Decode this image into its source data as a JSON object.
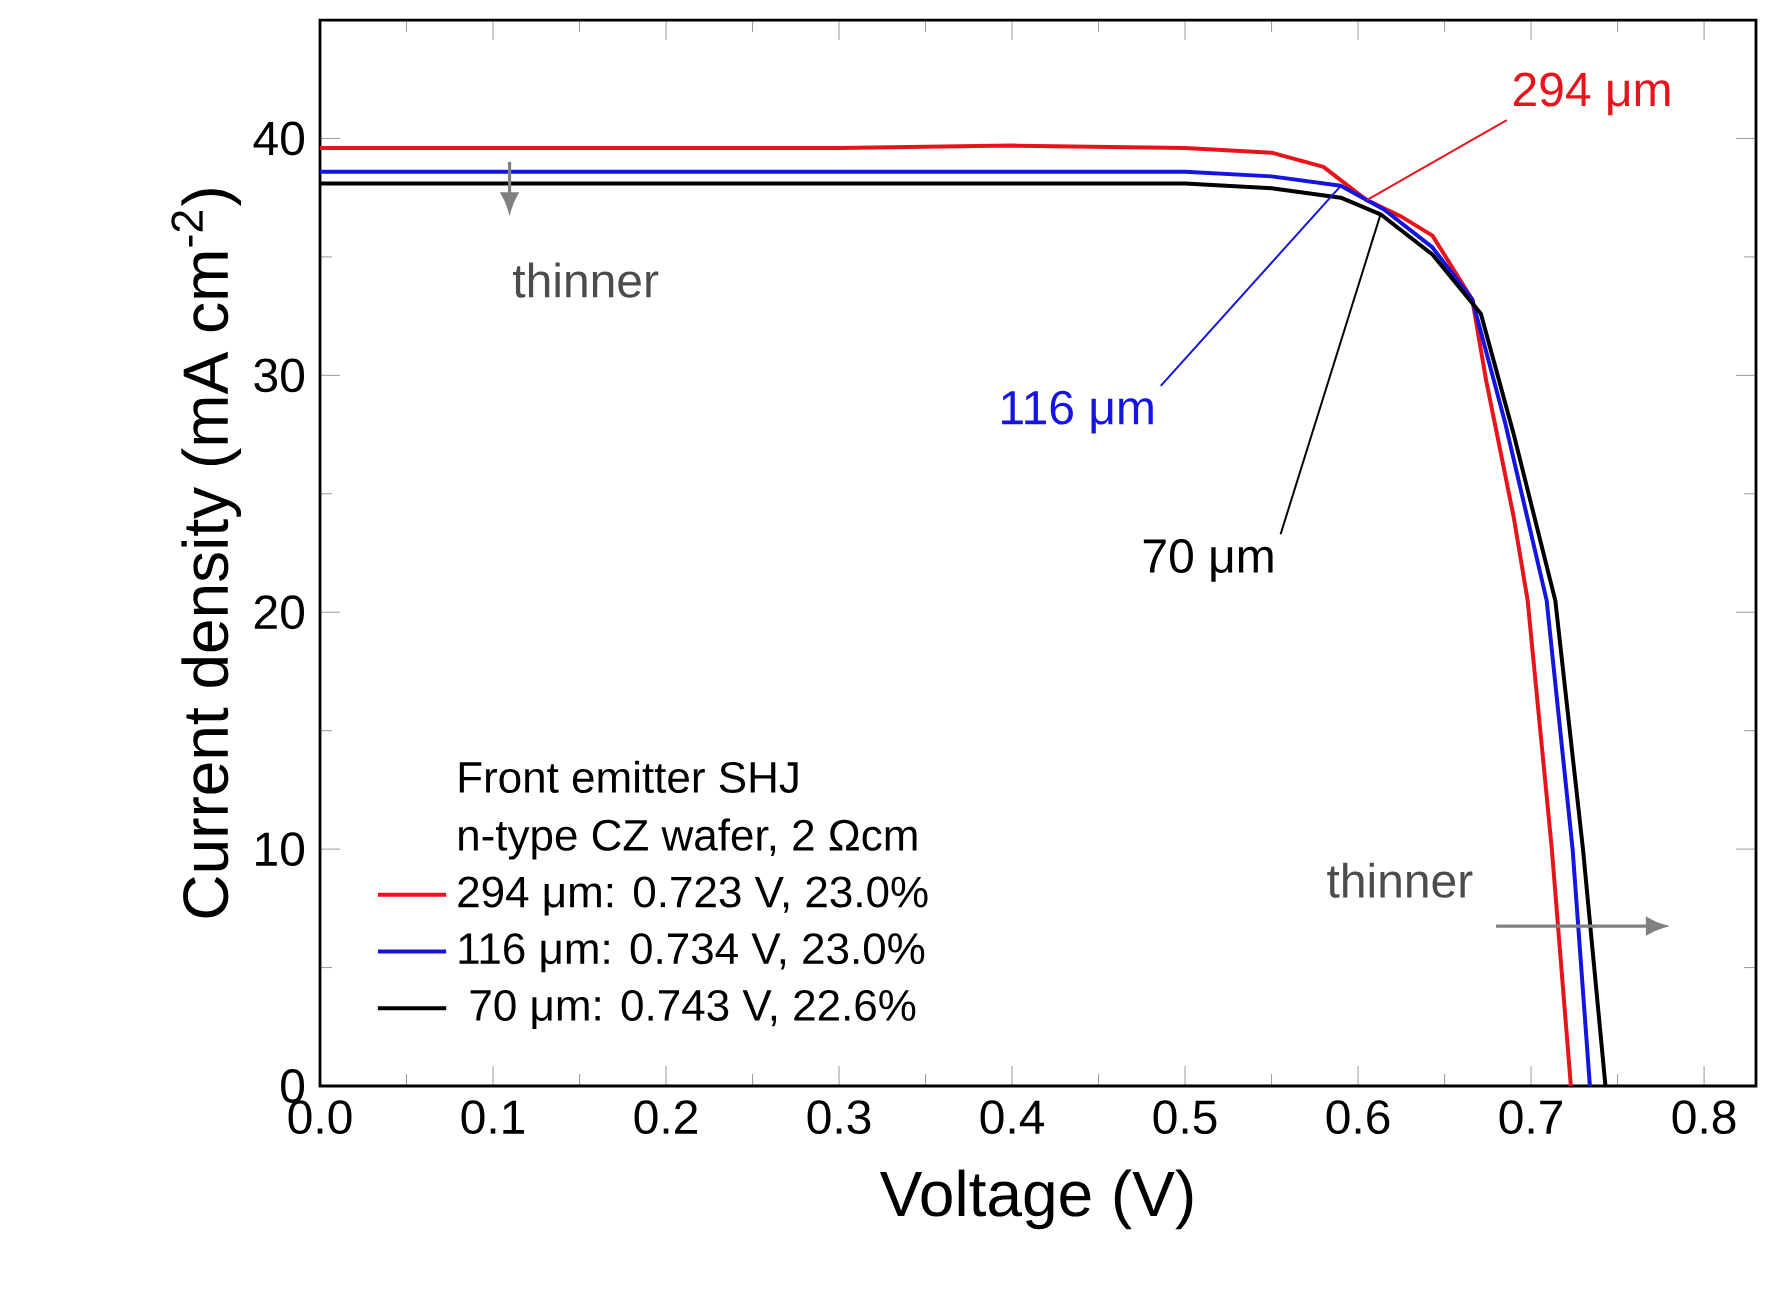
{
  "chart_data": {
    "type": "line",
    "xlabel": "Voltage (V)",
    "ylabel": "Current density (mA cm$^{-2}$)",
    "legend_title": "Front emitter SHJ",
    "xlim": [
      0,
      0.83
    ],
    "ylim": [
      0,
      45
    ],
    "xticks": [
      {
        "value": 0,
        "label": "0.0"
      },
      {
        "value": 0.1,
        "label": "0.1"
      },
      {
        "value": 0.2,
        "label": "0.2"
      },
      {
        "value": 0.3,
        "label": "0.3"
      },
      {
        "value": 0.4,
        "label": "0.4"
      },
      {
        "value": 0.5,
        "label": "0.5"
      },
      {
        "value": 0.6,
        "label": "0.6"
      },
      {
        "value": 0.7,
        "label": "0.7"
      },
      {
        "value": 0.8,
        "label": "0.8"
      }
    ],
    "yticks": [
      0,
      10,
      20,
      30,
      40
    ],
    "grid": false,
    "legend": "bottom left",
    "marker": "none",
    "line_style": "solid",
    "series": [
      {
        "name": "294 μm: 0.723 V, 23.0%",
        "color": "#e8141c",
        "x": [
          0,
          0.1,
          0.2,
          0.3,
          0.4,
          0.5,
          0.55,
          0.58,
          0.605,
          0.625,
          0.643,
          0.666,
          0.674,
          0.69,
          0.698,
          0.712,
          0.723
        ],
        "values": [
          39.6,
          39.6,
          39.6,
          39.6,
          39.7,
          39.6,
          39.4,
          38.8,
          37.4,
          36.7,
          35.9,
          33.2,
          29.8,
          24,
          20.5,
          10,
          0
        ]
      },
      {
        "name": "116 μm: 0.734 V, 23.0%",
        "color": "#1515e0",
        "x": [
          0,
          0.1,
          0.2,
          0.3,
          0.4,
          0.5,
          0.55,
          0.59,
          0.615,
          0.643,
          0.666,
          0.685,
          0.709,
          0.724,
          0.734
        ],
        "values": [
          38.6,
          38.6,
          38.6,
          38.6,
          38.6,
          38.6,
          38.4,
          38,
          37,
          35.4,
          33.2,
          28,
          20.5,
          10,
          0
        ]
      },
      {
        "name": " 70 μm: 0.743 V, 22.6%",
        "color": "#000000",
        "x": [
          0,
          0.1,
          0.2,
          0.3,
          0.4,
          0.5,
          0.55,
          0.59,
          0.613,
          0.643,
          0.671,
          0.69,
          0.714,
          0.73,
          0.743
        ],
        "values": [
          38.1,
          38.1,
          38.1,
          38.1,
          38.1,
          38.1,
          37.9,
          37.5,
          36.8,
          35.1,
          32.6,
          27.5,
          20.5,
          10,
          0
        ]
      }
    ],
    "annotations": [
      "n-type CZ wafer, 2 Ωcm",
      {
        "text": "294 μm",
        "x": 0.605,
        "y": 37.4
      },
      {
        "text": "116 μm",
        "x": 0.59,
        "y": 38
      },
      {
        "text": "70 μm",
        "x": 0.613,
        "y": 36.8
      },
      "thinner",
      "thinner"
    ]
  }
}
